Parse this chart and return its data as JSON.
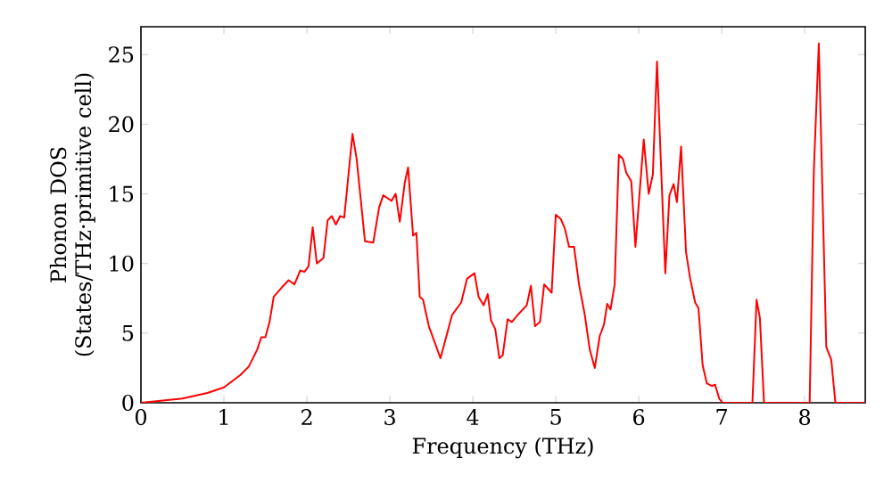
{
  "chart_data": {
    "type": "line",
    "xlabel": "Frequency (THz)",
    "ylabel": "Phonon DOS (States/THz·primitive cell)",
    "xlim": [
      0,
      8.73
    ],
    "ylim": [
      0,
      27
    ],
    "xticks": [
      0,
      1,
      2,
      3,
      4,
      5,
      6,
      7,
      8
    ],
    "yticks": [
      0,
      5,
      10,
      15,
      20,
      25
    ],
    "grid": false,
    "marker": "none",
    "line_style": "solid",
    "series": [
      {
        "color": "#ff0000",
        "x": [
          0,
          0.5,
          0.8,
          1.0,
          1.2,
          1.3,
          1.4,
          1.45,
          1.5,
          1.55,
          1.6,
          1.7,
          1.78,
          1.85,
          1.92,
          1.97,
          2.02,
          2.07,
          2.12,
          2.2,
          2.25,
          2.3,
          2.35,
          2.4,
          2.45,
          2.55,
          2.6,
          2.7,
          2.8,
          2.87,
          2.92,
          2.97,
          3.02,
          3.07,
          3.12,
          3.18,
          3.22,
          3.28,
          3.32,
          3.36,
          3.4,
          3.47,
          3.61,
          3.75,
          3.86,
          3.93,
          4.02,
          4.07,
          4.13,
          4.18,
          4.22,
          4.27,
          4.32,
          4.36,
          4.42,
          4.47,
          4.54,
          4.65,
          4.7,
          4.75,
          4.81,
          4.86,
          4.95,
          5.0,
          5.06,
          5.11,
          5.16,
          5.22,
          5.28,
          5.35,
          5.41,
          5.47,
          5.53,
          5.58,
          5.62,
          5.66,
          5.71,
          5.76,
          5.81,
          5.85,
          5.91,
          5.96,
          6.06,
          6.12,
          6.17,
          6.22,
          6.26,
          6.32,
          6.37,
          6.42,
          6.46,
          6.51,
          6.57,
          6.62,
          6.68,
          6.72,
          6.77,
          6.82,
          6.88,
          6.92,
          6.97,
          7.01,
          7.37,
          7.42,
          7.46,
          7.51,
          8.06,
          8.11,
          8.17,
          8.26,
          8.32,
          8.37,
          8.73
        ],
        "values": [
          0,
          0.3,
          0.7,
          1.1,
          2.0,
          2.6,
          3.8,
          4.7,
          4.7,
          5.8,
          7.6,
          8.3,
          8.8,
          8.5,
          9.5,
          9.4,
          9.8,
          12.6,
          10.0,
          10.4,
          13.1,
          13.4,
          12.8,
          13.4,
          13.3,
          19.3,
          17.5,
          11.6,
          11.5,
          14.0,
          14.9,
          14.7,
          14.5,
          15.0,
          13.0,
          15.8,
          16.9,
          12.0,
          12.2,
          7.6,
          7.4,
          5.5,
          3.2,
          6.3,
          7.2,
          8.9,
          9.3,
          7.6,
          7.0,
          7.8,
          5.9,
          5.3,
          3.2,
          3.4,
          6.0,
          5.8,
          6.3,
          7.0,
          8.4,
          5.5,
          5.8,
          8.5,
          7.9,
          13.5,
          13.2,
          12.5,
          11.2,
          11.2,
          8.5,
          6.3,
          3.8,
          2.5,
          4.8,
          5.6,
          7.1,
          6.7,
          8.5,
          17.8,
          17.5,
          16.5,
          15.9,
          11.2,
          18.9,
          15.0,
          16.4,
          24.5,
          18.3,
          9.3,
          14.9,
          15.7,
          14.4,
          18.4,
          10.8,
          8.9,
          7.2,
          6.8,
          2.7,
          1.4,
          1.2,
          1.3,
          0.3,
          0,
          0,
          7.4,
          6.1,
          0,
          0,
          16.6,
          25.8,
          4.0,
          3.1,
          0,
          0
        ]
      }
    ]
  }
}
